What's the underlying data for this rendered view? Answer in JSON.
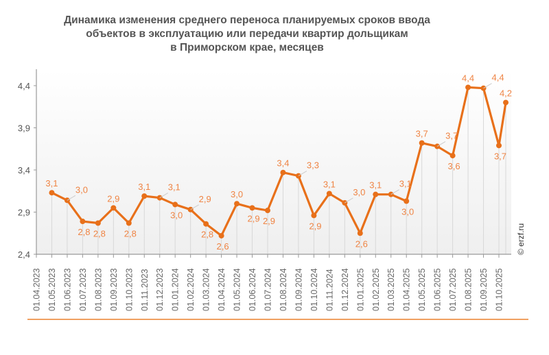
{
  "chart_data": {
    "type": "line",
    "title_lines": [
      "Динамика изменения среднего переноса планируемых сроков ввода",
      "объектов в эксплуатацию или передачи квартир дольщикам",
      "в Приморском крае, месяцев"
    ],
    "xlabel": "",
    "ylabel": "",
    "ylim": [
      2.4,
      4.4
    ],
    "yticks": [
      "2,4",
      "2,9",
      "3,4",
      "3,9",
      "4,4"
    ],
    "grid": false,
    "categories": [
      "01.04.2023",
      "01.05.2023",
      "01.06.2023",
      "01.07.2023",
      "01.08.2023",
      "01.09.2023",
      "01.10.2023",
      "01.11.2023",
      "01.12.2023",
      "01.01.2024",
      "01.02.2024",
      "01.03.2024",
      "01.04.2024",
      "01.05.2024",
      "01.06.2024",
      "01.07.2024",
      "01.08.2024",
      "01.09.2024",
      "01.10.2024",
      "01.11.2024",
      "01.12.2024",
      "01.01.2025",
      "01.02.2025",
      "01.03.2025",
      "01.04.2025",
      "01.05.2025",
      "01.06.2025",
      "01.07.2025",
      "01.08.2025",
      "01.09.2025",
      "01.10.2025"
    ],
    "values": [
      3.13,
      3.04,
      2.79,
      2.77,
      2.95,
      2.77,
      3.09,
      3.07,
      2.99,
      2.93,
      2.76,
      2.62,
      3.0,
      2.95,
      2.92,
      3.37,
      3.33,
      2.86,
      3.12,
      3.01,
      2.65,
      3.11,
      3.11,
      3.03,
      3.72,
      3.68,
      3.57,
      4.38,
      4.37,
      3.69,
      4.2
    ],
    "data_labels": [
      "3,1",
      "3,0",
      "2,8",
      "2,8",
      "2,9",
      "2,8",
      "3,1",
      "3,1",
      "3,0",
      "2,9",
      "2,8",
      "2,6",
      "3,0",
      "2,9",
      "2,9",
      "3,4",
      "3,3",
      "2,9",
      "3,1",
      "3,0",
      "2,6",
      "3,1",
      "3,1",
      "3,0",
      "3,7",
      "3,7",
      "3,6",
      "4,4",
      "4,4",
      "3,7",
      "4,2"
    ],
    "line_color": "#e8701a",
    "label_color": "#ef8444"
  },
  "watermark": "© erzf.ru",
  "accent_color": "#f0a060"
}
